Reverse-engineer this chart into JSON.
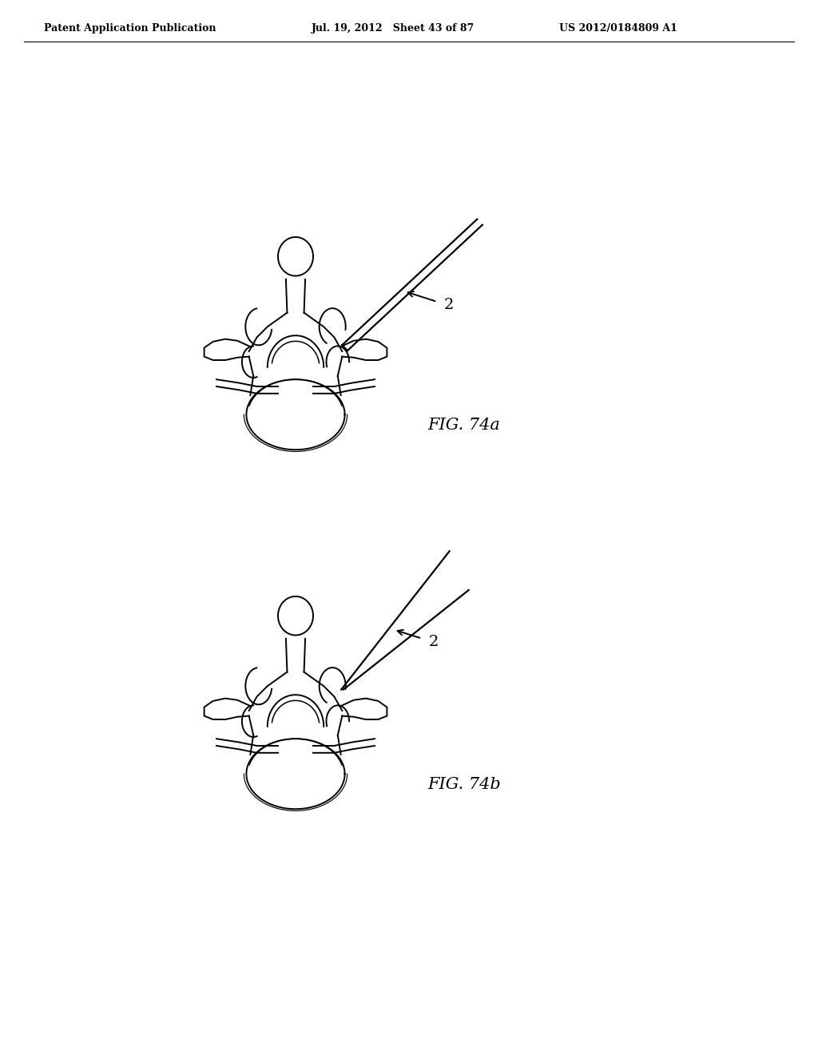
{
  "background_color": "#ffffff",
  "header_left": "Patent Application Publication",
  "header_mid": "Jul. 19, 2012   Sheet 43 of 87",
  "header_right": "US 2012/0184809 A1",
  "fig_label_a": "FIG. 74a",
  "fig_label_b": "FIG. 74b",
  "line_color": "#000000",
  "line_width": 1.4,
  "header_fontsize": 9,
  "fig_label_fontsize": 15
}
